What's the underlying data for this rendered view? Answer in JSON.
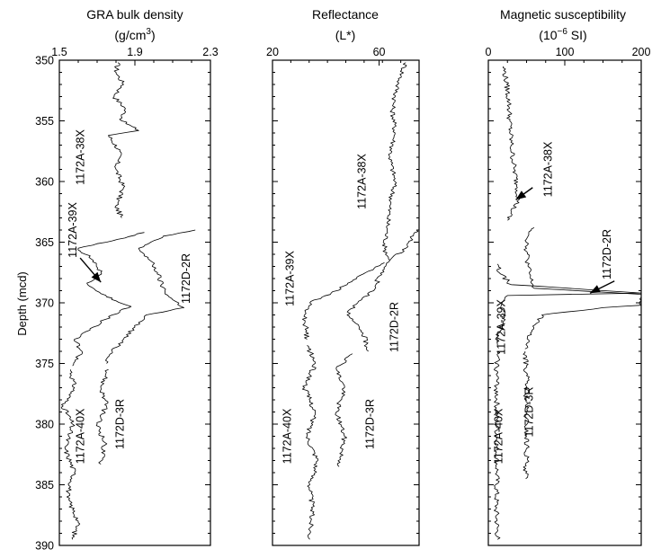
{
  "chart_data": [
    {
      "type": "line",
      "title": "GRA bulk density",
      "unit": "(g/cm³)",
      "unit_main": "(g/cm",
      "unit_sup": "3",
      "unit_end": ")",
      "ylabel": "Depth (mcd)",
      "xlim": [
        1.5,
        2.3
      ],
      "ylim": [
        350,
        390
      ],
      "y_inverted": true,
      "x_ticks": [
        "1.5",
        "1.9",
        "2.3"
      ],
      "y_ticks": [
        "350",
        "355",
        "360",
        "365",
        "370",
        "375",
        "380",
        "385",
        "390"
      ],
      "series": [
        {
          "name": "1172A-38X",
          "points": [
            [
              1.81,
              350.2
            ],
            [
              1.8,
              351.0
            ],
            [
              1.84,
              352.0
            ],
            [
              1.79,
              353.0
            ],
            [
              1.85,
              354.0
            ],
            [
              1.83,
              355.0
            ],
            [
              1.92,
              355.8
            ],
            [
              1.76,
              356.2
            ],
            [
              1.82,
              357.5
            ],
            [
              1.8,
              359.0
            ],
            [
              1.84,
              360.5
            ],
            [
              1.8,
              362.0
            ],
            [
              1.83,
              363.0
            ]
          ]
        },
        {
          "name": "1172A-39X",
          "points": [
            [
              1.95,
              364.2
            ],
            [
              1.75,
              365.0
            ],
            [
              1.6,
              365.5
            ],
            [
              1.68,
              366.5
            ],
            [
              1.72,
              367.5
            ],
            [
              1.65,
              368.5
            ],
            [
              1.75,
              369.5
            ],
            [
              1.88,
              370.3
            ],
            [
              1.78,
              371.0
            ],
            [
              1.68,
              372.0
            ],
            [
              1.58,
              373.0
            ],
            [
              1.62,
              374.0
            ],
            [
              1.57,
              375.2
            ]
          ]
        },
        {
          "name": "1172A-40X",
          "points": [
            [
              1.56,
              375.5
            ],
            [
              1.58,
              377.0
            ],
            [
              1.52,
              378.5
            ],
            [
              1.57,
              380.0
            ],
            [
              1.53,
              382.0
            ],
            [
              1.58,
              384.0
            ],
            [
              1.54,
              386.0
            ],
            [
              1.6,
              388.0
            ],
            [
              1.57,
              389.5
            ]
          ]
        },
        {
          "name": "1172D-2R",
          "points": [
            [
              2.22,
              364.0
            ],
            [
              2.05,
              364.5
            ],
            [
              1.92,
              365.5
            ],
            [
              1.98,
              366.5
            ],
            [
              2.02,
              367.5
            ],
            [
              2.04,
              368.5
            ],
            [
              2.08,
              369.5
            ],
            [
              2.16,
              370.4
            ],
            [
              1.96,
              371.0
            ],
            [
              1.9,
              372.0
            ],
            [
              1.84,
              373.0
            ],
            [
              1.78,
              374.0
            ],
            [
              1.75,
              375.0
            ]
          ]
        },
        {
          "name": "1172D-3R",
          "points": [
            [
              1.76,
              375.5
            ],
            [
              1.72,
              377.0
            ],
            [
              1.75,
              378.5
            ],
            [
              1.7,
              380.0
            ],
            [
              1.74,
              381.5
            ],
            [
              1.72,
              383.3
            ]
          ]
        }
      ]
    },
    {
      "type": "line",
      "title": "Reflectance",
      "unit": "(L*)",
      "xlim": [
        20,
        75
      ],
      "ylim": [
        350,
        390
      ],
      "y_inverted": true,
      "x_ticks": [
        "20",
        "60"
      ],
      "series": [
        {
          "name": "1172A-38X",
          "points": [
            [
              70,
              350.2
            ],
            [
              67,
              352.0
            ],
            [
              65,
              354.0
            ],
            [
              66,
              356.0
            ],
            [
              64,
              358.0
            ],
            [
              66,
              360.0
            ],
            [
              64,
              362.0
            ],
            [
              63,
              364.0
            ],
            [
              62,
              365.5
            ],
            [
              64,
              366.5
            ]
          ]
        },
        {
          "name": "1172A-39X",
          "points": [
            [
              62,
              366.7
            ],
            [
              55,
              367.5
            ],
            [
              48,
              368.5
            ],
            [
              42,
              369.2
            ],
            [
              34,
              370.0
            ],
            [
              32,
              371.0
            ],
            [
              33,
              373.0
            ]
          ]
        },
        {
          "name": "1172A-40X",
          "points": [
            [
              33,
              373.5
            ],
            [
              36,
              375.0
            ],
            [
              32,
              377.0
            ],
            [
              36,
              379.0
            ],
            [
              33,
              381.0
            ],
            [
              37,
              383.0
            ],
            [
              34,
              385.0
            ],
            [
              35,
              387.0
            ],
            [
              34,
              389.5
            ]
          ]
        },
        {
          "name": "1172D-2R",
          "points": [
            [
              74,
              364.0
            ],
            [
              70,
              365.5
            ],
            [
              64,
              366.5
            ],
            [
              60,
              367.8
            ],
            [
              58,
              369.0
            ],
            [
              52,
              370.0
            ],
            [
              48,
              371.0
            ],
            [
              54,
              372.5
            ],
            [
              56,
              374.0
            ]
          ]
        },
        {
          "name": "1172D-3R",
          "points": [
            [
              50,
              374.2
            ],
            [
              44,
              375.5
            ],
            [
              47,
              377.0
            ],
            [
              44,
              379.0
            ],
            [
              47,
              381.0
            ],
            [
              45,
              383.5
            ]
          ]
        }
      ]
    },
    {
      "type": "line",
      "title": "Magnetic susceptibility",
      "unit": "(10⁻⁶ SI)",
      "unit_main": "(10",
      "unit_sup": "−6",
      "unit_end": " SI)",
      "xlim": [
        0,
        200
      ],
      "ylim": [
        350,
        390
      ],
      "y_inverted": true,
      "x_ticks": [
        "0",
        "100",
        "200"
      ],
      "series": [
        {
          "name": "1172A-38X",
          "points": [
            [
              20,
              350.5
            ],
            [
              24,
              352.0
            ],
            [
              27,
              353.5
            ],
            [
              28,
              355.0
            ],
            [
              30,
              357.0
            ],
            [
              34,
              359.0
            ],
            [
              38,
              360.5
            ],
            [
              40,
              361.5
            ],
            [
              30,
              362.5
            ],
            [
              25,
              363.2
            ]
          ]
        },
        {
          "name": "1172A-39X",
          "points": [
            [
              12,
              366.8
            ],
            [
              14,
              367.5
            ],
            [
              30,
              368.5
            ],
            [
              200,
              369.2
            ],
            [
              25,
              369.4
            ],
            [
              18,
              370.0
            ],
            [
              20,
              371.5
            ],
            [
              14,
              372.5
            ],
            [
              12,
              373.5
            ]
          ]
        },
        {
          "name": "1172A-40X",
          "points": [
            [
              12,
              374.0
            ],
            [
              11,
              376.0
            ],
            [
              11,
              380.0
            ],
            [
              11,
              384.0
            ],
            [
              10,
              387.0
            ],
            [
              12,
              389.5
            ]
          ]
        },
        {
          "name": "1172D-2R",
          "points": [
            [
              60,
              363.8
            ],
            [
              52,
              364.5
            ],
            [
              50,
              365.5
            ],
            [
              52,
              367.0
            ],
            [
              55,
              368.0
            ],
            [
              60,
              368.8
            ],
            [
              200,
              369.3
            ],
            [
              200,
              370.2
            ],
            [
              150,
              370.4
            ],
            [
              70,
              371.0
            ],
            [
              55,
              372.5
            ],
            [
              48,
              373.8
            ]
          ]
        },
        {
          "name": "1172D-3R",
          "points": [
            [
              48,
              374.0
            ],
            [
              50,
              376.0
            ],
            [
              49,
              379.0
            ],
            [
              50,
              382.0
            ],
            [
              49,
              384.5
            ]
          ]
        }
      ]
    }
  ]
}
